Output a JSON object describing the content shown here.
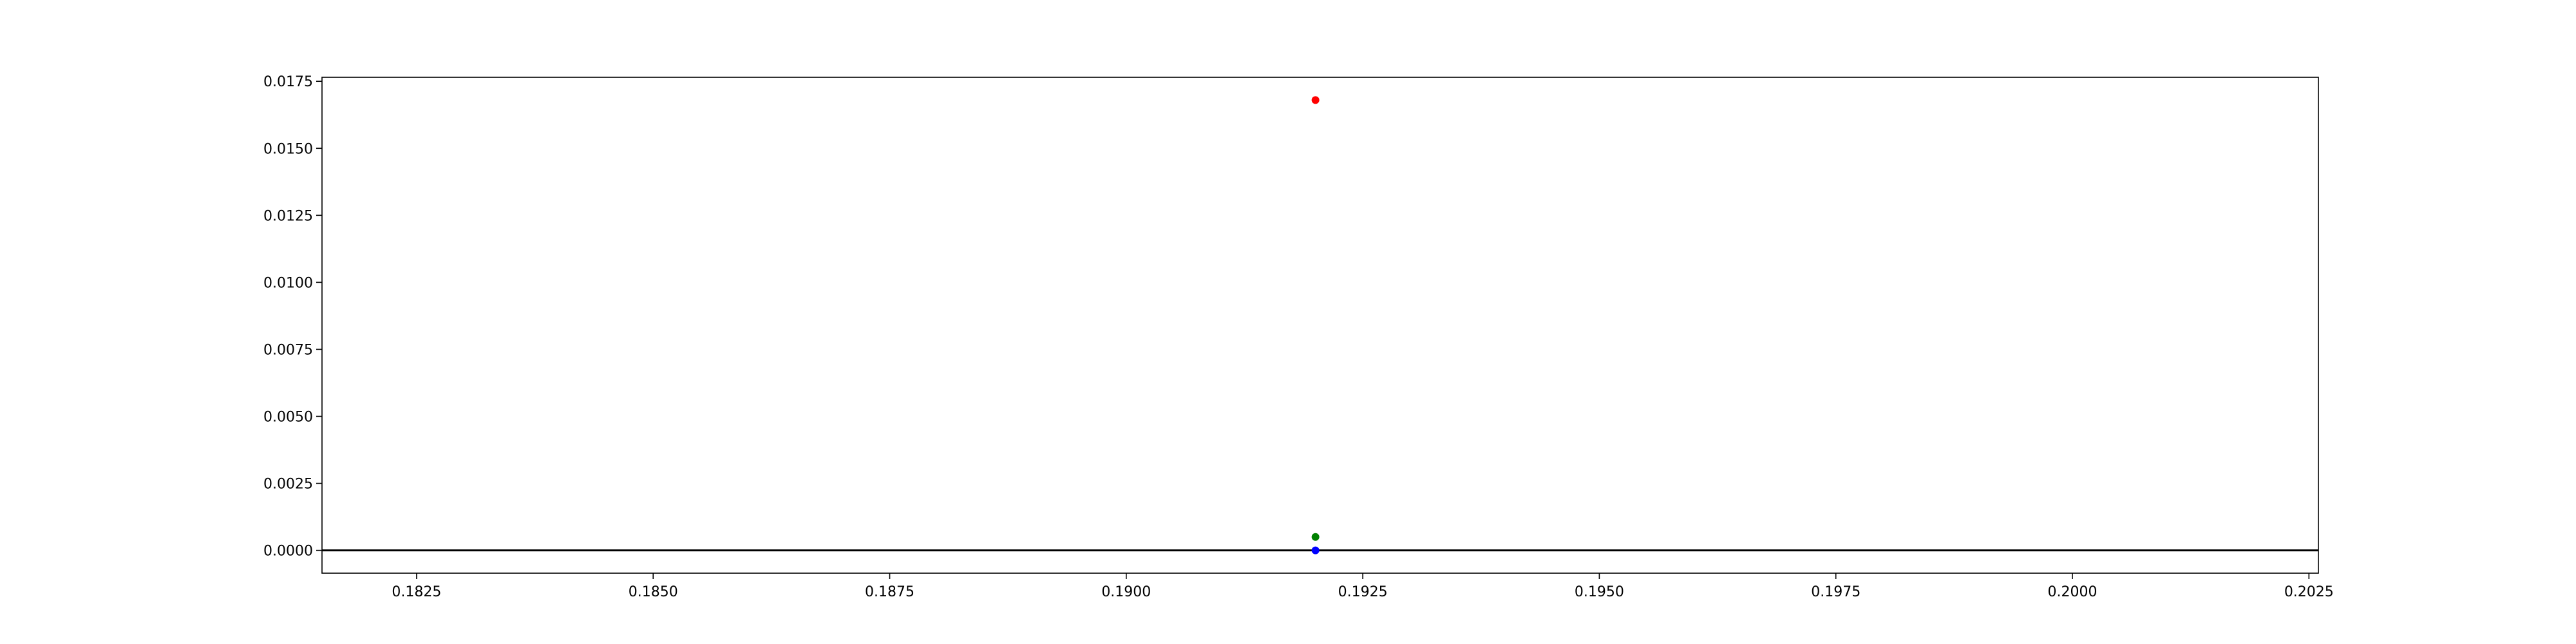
{
  "chart_data": {
    "type": "scatter",
    "title": "",
    "xlabel": "",
    "ylabel": "",
    "xlim": [
      0.1815,
      0.2026
    ],
    "ylim": [
      -0.00085,
      0.01765
    ],
    "grid": false,
    "legend": "none",
    "x_ticks": [
      {
        "value": 0.1825,
        "label": "0.1825"
      },
      {
        "value": 0.185,
        "label": "0.1850"
      },
      {
        "value": 0.1875,
        "label": "0.1875"
      },
      {
        "value": 0.19,
        "label": "0.1900"
      },
      {
        "value": 0.1925,
        "label": "0.1925"
      },
      {
        "value": 0.195,
        "label": "0.1950"
      },
      {
        "value": 0.1975,
        "label": "0.1975"
      },
      {
        "value": 0.2,
        "label": "0.2000"
      },
      {
        "value": 0.2025,
        "label": "0.2025"
      }
    ],
    "y_ticks": [
      {
        "value": 0.0,
        "label": "0.0000"
      },
      {
        "value": 0.0025,
        "label": "0.0025"
      },
      {
        "value": 0.005,
        "label": "0.0050"
      },
      {
        "value": 0.0075,
        "label": "0.0075"
      },
      {
        "value": 0.01,
        "label": "0.0100"
      },
      {
        "value": 0.0125,
        "label": "0.0125"
      },
      {
        "value": 0.015,
        "label": "0.0150"
      },
      {
        "value": 0.0175,
        "label": "0.0175"
      }
    ],
    "horizontal_line": {
      "y": 0.0,
      "color": "#000000"
    },
    "series": [
      {
        "color": "#ff0000",
        "points": [
          {
            "x": 0.192,
            "y": 0.0168
          }
        ]
      },
      {
        "color": "#008000",
        "points": [
          {
            "x": 0.192,
            "y": 0.0005
          }
        ]
      },
      {
        "color": "#0000ff",
        "points": [
          {
            "x": 0.192,
            "y": 0.0
          }
        ]
      }
    ]
  }
}
